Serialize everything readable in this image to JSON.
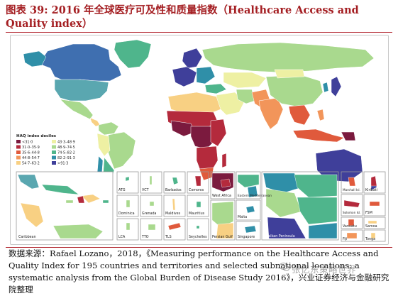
{
  "header": {
    "title": "图表 39: 2016 年全球医疗可及性和质量指数（Healthcare Access and Quality index）"
  },
  "legend": {
    "title": "HAQ index deciles",
    "items": [
      {
        "label": "<31·0",
        "color": "#7b1a3e"
      },
      {
        "label": "43·3–48·9",
        "color": "#eef0a3"
      },
      {
        "label": "31·0–35·9",
        "color": "#b42a3c"
      },
      {
        "label": "48·9–74·5",
        "color": "#a9d98e"
      },
      {
        "label": "35·6–44·8",
        "color": "#e05a3c"
      },
      {
        "label": "74·5–82·2",
        "color": "#4fb58c"
      },
      {
        "label": "44·8–54·7",
        "color": "#f2955a"
      },
      {
        "label": "82·2–91·3",
        "color": "#2f8fa8"
      },
      {
        "label": "54·7–63·2",
        "color": "#f8d083"
      },
      {
        "label": ">91·3",
        "color": "#3f3f9a"
      }
    ]
  },
  "insets": {
    "caribbean": "Caribbean",
    "small_row1": [
      "ATG",
      "VCT",
      "Barbados",
      "Comoros"
    ],
    "small_row2": [
      "Dominica",
      "Grenada",
      "Maldives",
      "Mauritius"
    ],
    "small_row3": [
      "LCA",
      "TTO",
      "TLS",
      "Seychelles"
    ],
    "mid_labels": [
      "West Africa",
      "Eastern Mediterranean",
      "Persian Gulf",
      "Malta",
      "Singapore",
      "Balkan Peninsula"
    ],
    "right_labels": [
      "Marshall Isl.",
      "Kiribati",
      "Solomon Isl.",
      "FSM",
      "Vanuatu",
      "Samoa",
      "Fiji",
      "Tonga"
    ]
  },
  "source": {
    "text": "数据来源：Rafael Lozano，2018，《Measuring performance on the Healthcare Access and Quality Index for 195 countries and territories and selected subnational locations: a systematic analysis from the Global Burden of Disease Study 2016》，兴业证券经济与金融研究院整理"
  },
  "watermark": "张忆东策略世界",
  "colors": {
    "ocean": "#ffffff",
    "accent": "#a41e22"
  }
}
